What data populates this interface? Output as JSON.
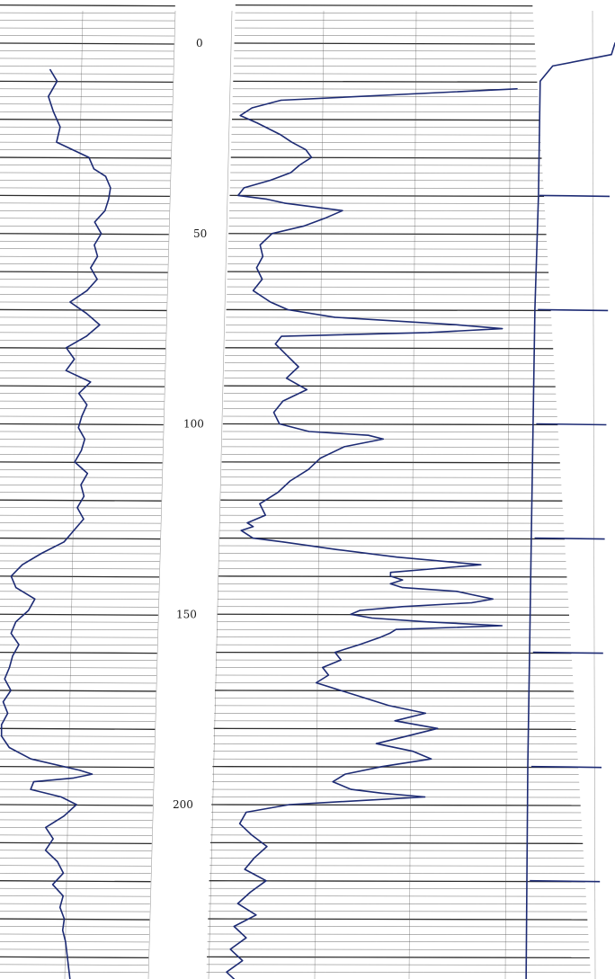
{
  "colors": {
    "ink": "#1d2b74",
    "grid": "#222222",
    "paper": "#ffffff"
  },
  "chart_data": {
    "type": "line",
    "title": "",
    "orientation": "vertical depth log",
    "depth_axis": {
      "label": "",
      "range": [
        0,
        250
      ],
      "tick_labels": [
        "0",
        "50",
        "100",
        "150",
        "200"
      ],
      "ticks": [
        0,
        50,
        100,
        150,
        200
      ]
    },
    "grid": true,
    "series": [
      {
        "track": "left",
        "depth": [
          7,
          10,
          14,
          18,
          22,
          26,
          30,
          33,
          35,
          38,
          41,
          44,
          47,
          50,
          53,
          56,
          59,
          62,
          65,
          68,
          71,
          74,
          77,
          80,
          83,
          86,
          89,
          92,
          95,
          98,
          101,
          104,
          107,
          110,
          113,
          116,
          119,
          122,
          125,
          128,
          131,
          134,
          137,
          140,
          143,
          146,
          149,
          152,
          155,
          158,
          161,
          164,
          167,
          170,
          173,
          176,
          179,
          182,
          185,
          188,
          191,
          192,
          193,
          194,
          196,
          198,
          200,
          203,
          206,
          209,
          212,
          215,
          218,
          221,
          224,
          227,
          230,
          233,
          236,
          239,
          242,
          245,
          248
        ],
        "value": [
          0.29,
          0.33,
          0.28,
          0.31,
          0.35,
          0.33,
          0.52,
          0.55,
          0.62,
          0.65,
          0.64,
          0.62,
          0.56,
          0.6,
          0.56,
          0.58,
          0.54,
          0.58,
          0.52,
          0.42,
          0.52,
          0.6,
          0.52,
          0.4,
          0.45,
          0.4,
          0.55,
          0.48,
          0.53,
          0.5,
          0.48,
          0.52,
          0.5,
          0.46,
          0.54,
          0.5,
          0.52,
          0.48,
          0.52,
          0.46,
          0.4,
          0.26,
          0.14,
          0.07,
          0.1,
          0.22,
          0.18,
          0.1,
          0.07,
          0.12,
          0.08,
          0.06,
          0.03,
          0.07,
          0.02,
          0.05,
          0.01,
          0.01,
          0.06,
          0.2,
          0.52,
          0.6,
          0.48,
          0.22,
          0.2,
          0.4,
          0.5,
          0.42,
          0.3,
          0.35,
          0.3,
          0.38,
          0.42,
          0.35,
          0.42,
          0.4,
          0.43,
          0.42,
          0.44,
          0.45,
          0.46,
          0.47,
          0.48
        ]
      },
      {
        "track": "middle",
        "depth": [
          12,
          15,
          17,
          19,
          21,
          24,
          26,
          28,
          30,
          32,
          34,
          36,
          38,
          40,
          41,
          42,
          44,
          46,
          48,
          50,
          53,
          56,
          59,
          62,
          65,
          68,
          70,
          72,
          74,
          75,
          76,
          77,
          79,
          82,
          85,
          88,
          91,
          94,
          97,
          100,
          102,
          103,
          104,
          106,
          109,
          112,
          115,
          118,
          121,
          124,
          126,
          127,
          128,
          130,
          131,
          133,
          135,
          137,
          139,
          140,
          141,
          142,
          143,
          144,
          145,
          146,
          147,
          148,
          149,
          150,
          151,
          152,
          153,
          154,
          155,
          156,
          158,
          160,
          162,
          164,
          166,
          168,
          170,
          172,
          174,
          176,
          178,
          180,
          182,
          184,
          186,
          188,
          190,
          192,
          194,
          196,
          197,
          198,
          200,
          202,
          205,
          208,
          211,
          214,
          217,
          220,
          223,
          226,
          229,
          232,
          235,
          238,
          241,
          244,
          247,
          250
        ],
        "value": [
          1.0,
          0.18,
          0.08,
          0.04,
          0.1,
          0.18,
          0.22,
          0.27,
          0.29,
          0.25,
          0.22,
          0.15,
          0.06,
          0.04,
          0.14,
          0.2,
          0.4,
          0.34,
          0.27,
          0.16,
          0.12,
          0.13,
          0.11,
          0.13,
          0.1,
          0.16,
          0.22,
          0.38,
          0.8,
          0.95,
          0.7,
          0.2,
          0.18,
          0.22,
          0.26,
          0.22,
          0.29,
          0.21,
          0.18,
          0.2,
          0.3,
          0.5,
          0.55,
          0.42,
          0.34,
          0.3,
          0.24,
          0.2,
          0.14,
          0.16,
          0.1,
          0.12,
          0.08,
          0.12,
          0.22,
          0.4,
          0.6,
          0.88,
          0.58,
          0.58,
          0.62,
          0.58,
          0.62,
          0.8,
          0.86,
          0.92,
          0.85,
          0.62,
          0.48,
          0.45,
          0.52,
          0.7,
          0.95,
          0.6,
          0.58,
          0.55,
          0.48,
          0.4,
          0.42,
          0.36,
          0.38,
          0.34,
          0.42,
          0.5,
          0.58,
          0.7,
          0.6,
          0.74,
          0.64,
          0.54,
          0.66,
          0.72,
          0.56,
          0.44,
          0.4,
          0.46,
          0.56,
          0.7,
          0.26,
          0.12,
          0.1,
          0.14,
          0.19,
          0.15,
          0.12,
          0.19,
          0.14,
          0.1,
          0.16,
          0.09,
          0.13,
          0.08,
          0.12,
          0.07,
          0.11,
          0.09
        ]
      },
      {
        "track": "right",
        "kind": "depth-marker trace",
        "depth": [
          0,
          3,
          6,
          10,
          40,
          70,
          100,
          130,
          160,
          190,
          220,
          250
        ],
        "value": [
          1.0,
          0.96,
          0.3,
          0.16,
          0.14,
          0.1,
          0.08,
          0.06,
          0.04,
          0.02,
          0.01,
          0.0
        ],
        "markers": [
          40,
          70,
          100,
          130,
          160,
          190,
          220
        ]
      }
    ]
  }
}
